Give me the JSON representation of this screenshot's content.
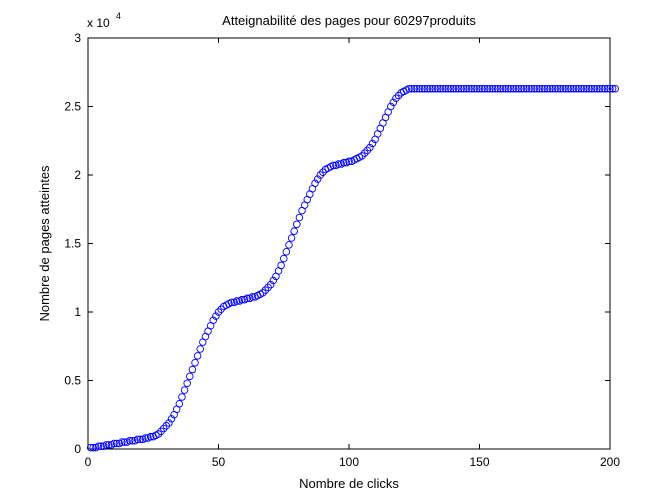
{
  "chart_data": {
    "type": "scatter",
    "title": "Atteignabilité des pages pour 60297produits",
    "xlabel": "Nombre de clicks",
    "ylabel": "Nombre de pages atteintes",
    "y_exponent_base": "x 10",
    "y_exponent_power": "4",
    "xlim": [
      0,
      200
    ],
    "ylim": [
      0,
      3
    ],
    "y_scale_factor": 10000,
    "xticks": [
      {
        "value": 0,
        "label": "0"
      },
      {
        "value": 50,
        "label": "50"
      },
      {
        "value": 100,
        "label": "100"
      },
      {
        "value": 150,
        "label": "150"
      },
      {
        "value": 200,
        "label": "200"
      }
    ],
    "yticks": [
      {
        "value": 0,
        "label": "0"
      },
      {
        "value": 0.5,
        "label": "0.5"
      },
      {
        "value": 1,
        "label": "1"
      },
      {
        "value": 1.5,
        "label": "1.5"
      },
      {
        "value": 2,
        "label": "2"
      },
      {
        "value": 2.5,
        "label": "2.5"
      },
      {
        "value": 3,
        "label": "3"
      }
    ],
    "grid": false,
    "marker": "circle",
    "marker_color": "#0000ff",
    "series": [
      {
        "x_start": 1,
        "x_step": 1,
        "values": [
          0.01,
          0.01,
          0.01,
          0.02,
          0.02,
          0.02,
          0.03,
          0.03,
          0.03,
          0.04,
          0.04,
          0.04,
          0.05,
          0.05,
          0.05,
          0.06,
          0.06,
          0.06,
          0.07,
          0.07,
          0.07,
          0.08,
          0.08,
          0.09,
          0.09,
          0.1,
          0.11,
          0.13,
          0.15,
          0.17,
          0.19,
          0.22,
          0.25,
          0.29,
          0.33,
          0.38,
          0.43,
          0.48,
          0.53,
          0.58,
          0.63,
          0.68,
          0.73,
          0.78,
          0.82,
          0.86,
          0.9,
          0.94,
          0.97,
          1.0,
          1.02,
          1.04,
          1.05,
          1.06,
          1.07,
          1.07,
          1.08,
          1.08,
          1.09,
          1.09,
          1.1,
          1.1,
          1.11,
          1.11,
          1.12,
          1.13,
          1.14,
          1.16,
          1.18,
          1.2,
          1.23,
          1.26,
          1.3,
          1.34,
          1.39,
          1.44,
          1.49,
          1.54,
          1.59,
          1.64,
          1.69,
          1.74,
          1.78,
          1.82,
          1.86,
          1.9,
          1.94,
          1.97,
          2.0,
          2.02,
          2.04,
          2.05,
          2.06,
          2.07,
          2.07,
          2.08,
          2.08,
          2.09,
          2.09,
          2.1,
          2.1,
          2.11,
          2.12,
          2.13,
          2.14,
          2.16,
          2.18,
          2.2,
          2.23,
          2.26,
          2.3,
          2.34,
          2.38,
          2.42,
          2.46,
          2.5,
          2.53,
          2.56,
          2.58,
          2.6,
          2.61,
          2.62,
          2.63,
          2.63,
          2.63,
          2.63,
          2.63,
          2.63,
          2.63,
          2.63,
          2.63,
          2.63,
          2.63,
          2.63,
          2.63,
          2.63,
          2.63,
          2.63,
          2.63,
          2.63,
          2.63,
          2.63,
          2.63,
          2.63,
          2.63,
          2.63,
          2.63,
          2.63,
          2.63,
          2.63,
          2.63,
          2.63,
          2.63,
          2.63,
          2.63,
          2.63,
          2.63,
          2.63,
          2.63,
          2.63,
          2.63,
          2.63,
          2.63,
          2.63,
          2.63,
          2.63,
          2.63,
          2.63,
          2.63,
          2.63,
          2.63,
          2.63,
          2.63,
          2.63,
          2.63,
          2.63,
          2.63,
          2.63,
          2.63,
          2.63,
          2.63,
          2.63,
          2.63,
          2.63,
          2.63,
          2.63,
          2.63,
          2.63,
          2.63,
          2.63,
          2.63,
          2.63,
          2.63,
          2.63,
          2.63,
          2.63,
          2.63,
          2.63,
          2.63,
          2.63,
          2.63,
          2.63
        ]
      }
    ]
  }
}
